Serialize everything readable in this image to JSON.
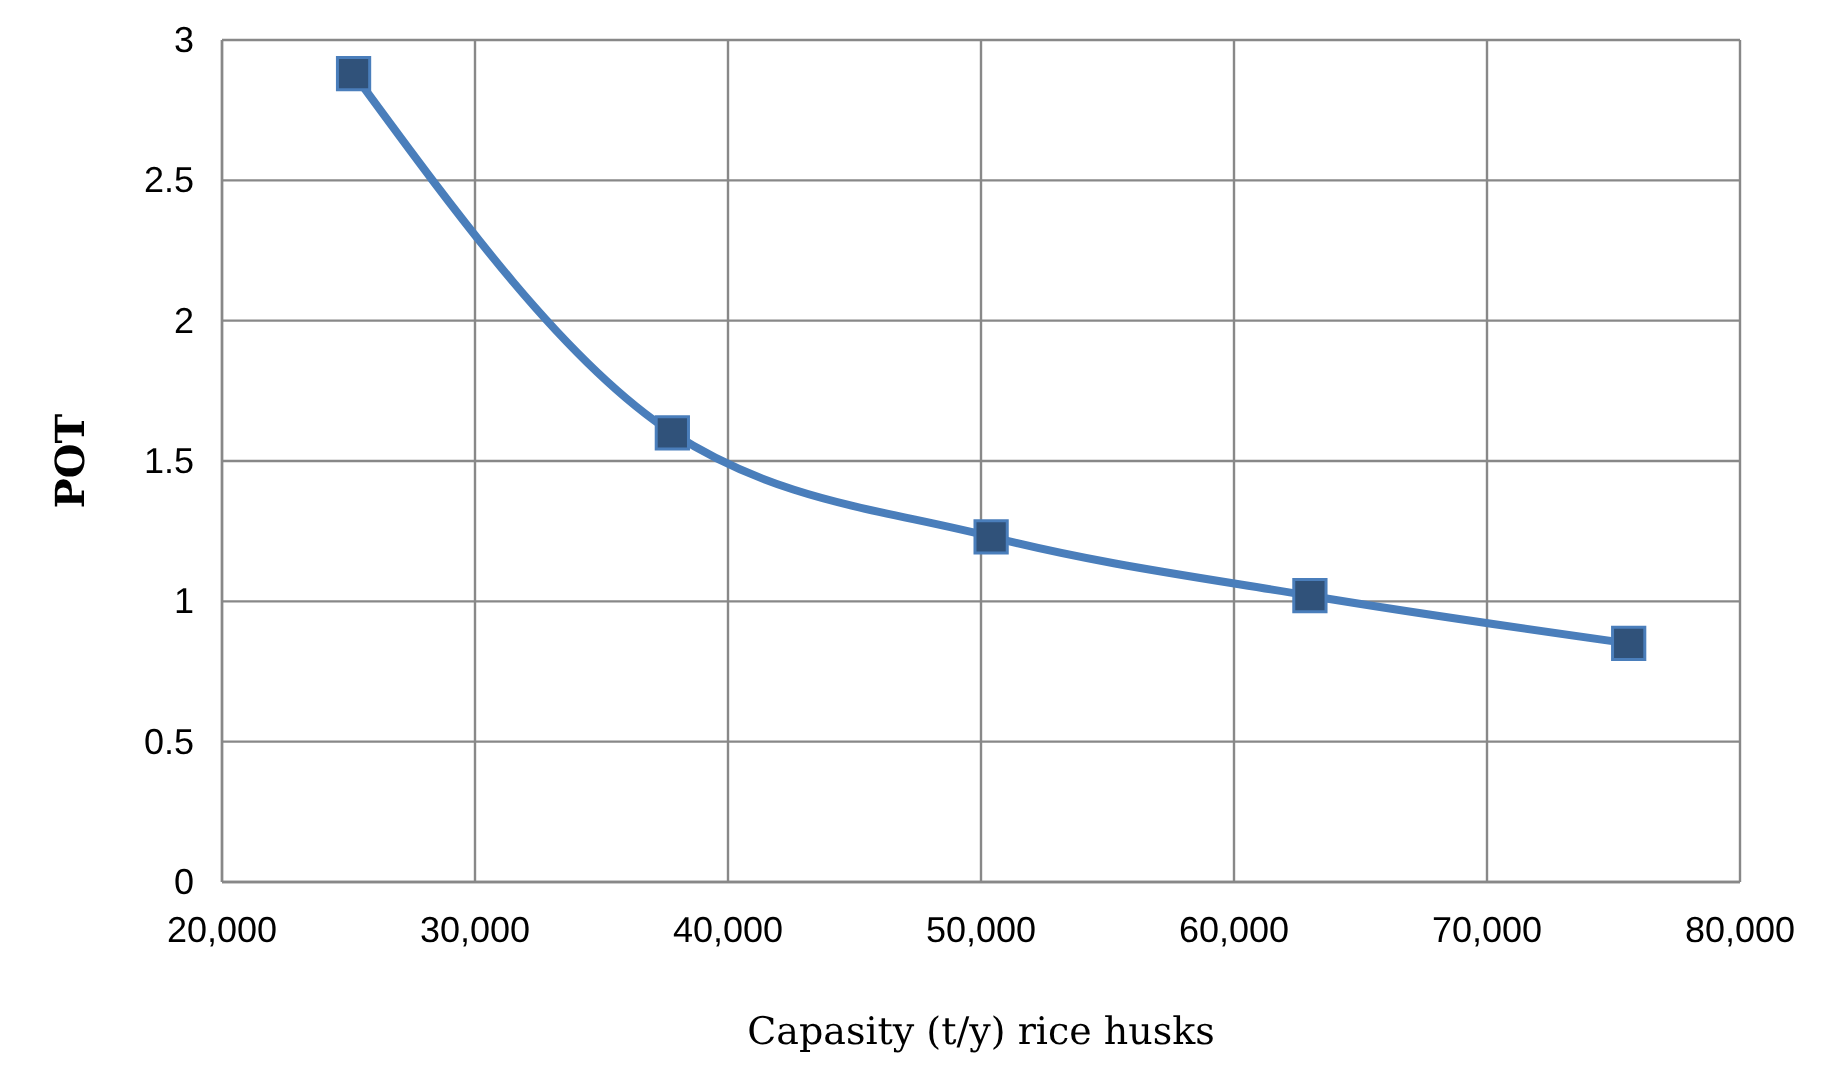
{
  "chart_data": {
    "type": "line",
    "xlabel": "Capasity (t/y) rice husks",
    "ylabel": "POT",
    "x": [
      25200,
      37800,
      50400,
      63000,
      75600
    ],
    "series": [
      {
        "color": "#4a7ebb",
        "values": [
          2.88,
          1.6,
          1.23,
          1.02,
          0.85
        ]
      }
    ],
    "xlim": [
      20000,
      80000
    ],
    "xticks": [
      {
        "value": 20000,
        "label": "20,000"
      },
      {
        "value": 30000,
        "label": "30,000"
      },
      {
        "value": 40000,
        "label": "40,000"
      },
      {
        "value": 50000,
        "label": "50,000"
      },
      {
        "value": 60000,
        "label": "60,000"
      },
      {
        "value": 70000,
        "label": "70,000"
      },
      {
        "value": 80000,
        "label": "80,000"
      }
    ],
    "ylim": [
      0,
      3
    ],
    "yticks": [
      0,
      {
        "value": 0.5,
        "label": "0.5"
      },
      1,
      {
        "value": 1.5,
        "label": "1.5"
      },
      2,
      {
        "value": 2.5,
        "label": "2.5"
      },
      3
    ],
    "grid": true,
    "marker": "square"
  }
}
